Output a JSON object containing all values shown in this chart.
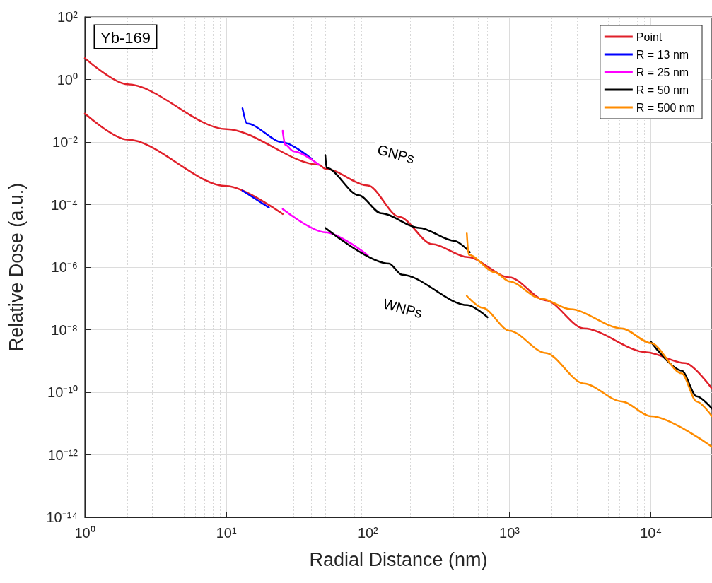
{
  "chart_data": {
    "type": "line",
    "xlabel": "Radial Distance (nm)",
    "ylabel": "Relative Dose (a.u.)",
    "annotations": [
      "Yb-169",
      "GNPs",
      "WNPs"
    ],
    "log": "xy",
    "grid": true,
    "legend": "top right",
    "marker": "none",
    "line_style": "solid",
    "xlim": [
      1,
      27000
    ],
    "ylim": [
      1e-14,
      100
    ],
    "xticks": [
      {
        "value": 1,
        "label": "10⁰"
      },
      {
        "value": 10,
        "label": "10¹"
      },
      {
        "value": 100,
        "label": "10²"
      },
      {
        "value": 1000,
        "label": "10³"
      },
      {
        "value": 10000,
        "label": "10⁴"
      }
    ],
    "yticks": [
      {
        "value": 1e-14,
        "label": "10⁻¹⁴"
      },
      {
        "value": 1e-12,
        "label": "10⁻¹²"
      },
      {
        "value": 1e-10,
        "label": "10⁻¹⁰"
      },
      {
        "value": 1e-08,
        "label": "10⁻⁸"
      },
      {
        "value": 1e-06,
        "label": "10⁻⁶"
      },
      {
        "value": 0.0001,
        "label": "10⁻⁴"
      },
      {
        "value": 0.01,
        "label": "10⁻²"
      },
      {
        "value": 1,
        "label": "10⁰"
      },
      {
        "value": 100,
        "label": "10²"
      }
    ],
    "series": [
      {
        "name": "Point",
        "color": "#e0202a",
        "x": [
          1,
          2,
          10,
          45,
          50,
          100,
          166,
          285,
          506,
          1000,
          1800,
          3350,
          9300,
          17400,
          27000
        ],
        "values": [
          4.8,
          0.7,
          0.026,
          0.0019,
          0.0014,
          0.00041,
          4.1e-05,
          5.4e-06,
          2.1e-06,
          4.7e-07,
          8.7e-08,
          1.1e-08,
          1.9e-09,
          8.5e-10,
          1.3e-10
        ]
      },
      {
        "name": "R = 13 nm",
        "color": "#0000ff",
        "x": [
          13,
          14,
          25,
          40
        ],
        "values": [
          0.12,
          0.039,
          0.0098,
          0.0029
        ]
      },
      {
        "name": "R = 25 nm",
        "color": "#ff00ff",
        "x": [
          25,
          26,
          30,
          45
        ],
        "values": [
          0.023,
          0.0082,
          0.005,
          0.0019
        ]
      },
      {
        "name": "R = 50 nm",
        "color": "#000000",
        "x": [
          50,
          51,
          86,
          124,
          230,
          410,
          525,
          1000,
          1660,
          2700,
          6200,
          10000,
          16500,
          21000,
          27000
        ],
        "values": [
          0.0038,
          0.0015,
          0.0002,
          5.3e-05,
          1.8e-05,
          6.9e-06,
          3e-06,
          null,
          null,
          null,
          null,
          4.1e-09,
          4.9e-10,
          7.4e-11,
          3e-11
        ]
      },
      {
        "name": "R = 500 nm",
        "color": "#ff8c00",
        "x": [
          500,
          515,
          790,
          1000,
          1660,
          2700,
          6200,
          10000,
          16500,
          21000,
          27000
        ],
        "values": [
          1.2e-05,
          2.5e-06,
          6.8e-07,
          3.5e-07,
          1e-07,
          4.5e-08,
          1.1e-08,
          3.7e-09,
          4e-10,
          5.1e-11,
          1.7e-11
        ]
      },
      {
        "color": "#e0202a",
        "x": [
          1,
          2,
          10,
          25
        ],
        "values": [
          0.081,
          0.012,
          0.00039,
          5e-05
        ]
      },
      {
        "color": "#0000ff",
        "x": [
          13,
          20
        ],
        "values": [
          0.00028,
          8e-05
        ]
      },
      {
        "color": "#ff00ff",
        "x": [
          25,
          50,
          100
        ],
        "values": [
          7.2e-05,
          1.3e-05,
          2.4e-06
        ]
      },
      {
        "color": "#000000",
        "x": [
          50,
          141,
          174,
          506,
          700
        ],
        "values": [
          1.8e-05,
          1.3e-06,
          5.7e-07,
          6.1e-08,
          2.5e-08
        ]
      },
      {
        "color": "#ff8c00",
        "x": [
          500,
          645,
          1000,
          1800,
          3350,
          6200,
          10000,
          27000
        ],
        "values": [
          1.2e-07,
          5e-08,
          9.3e-09,
          1.8e-09,
          1.9e-10,
          5.1e-11,
          1.7e-11,
          1.8e-12
        ]
      }
    ]
  }
}
